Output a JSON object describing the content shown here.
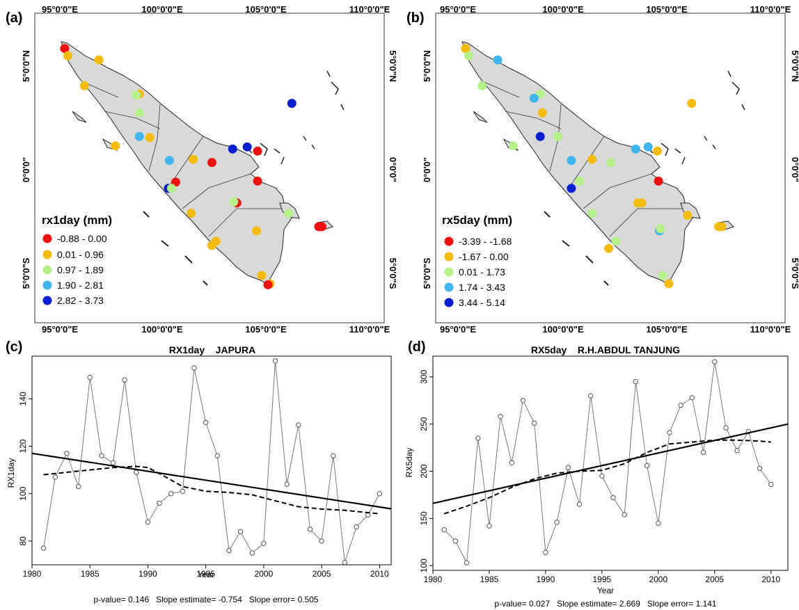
{
  "panels": [
    {
      "label": "(a)",
      "legend": {
        "title": "rx1day (mm)",
        "classes": [
          {
            "label": "-0.88 - 0.00",
            "color": "#ee1111"
          },
          {
            "label": "0.01 - 0.96",
            "color": "#f5bc10"
          },
          {
            "label": "0.97 - 1.89",
            "color": "#b6f08a"
          },
          {
            "label": "1.90 - 2.81",
            "color": "#3fb5ee"
          },
          {
            "label": "2.82 - 3.73",
            "color": "#0a1fd0"
          }
        ]
      },
      "points": [
        {
          "lon": 95.3,
          "lat": 5.85,
          "c": 0
        },
        {
          "lon": 95.45,
          "lat": 5.5,
          "c": 1
        },
        {
          "lon": 96.95,
          "lat": 5.3,
          "c": 1
        },
        {
          "lon": 96.25,
          "lat": 4.05,
          "c": 1
        },
        {
          "lon": 98.9,
          "lat": 3.65,
          "c": 1
        },
        {
          "lon": 98.75,
          "lat": 3.6,
          "c": 2
        },
        {
          "lon": 98.9,
          "lat": 2.75,
          "c": 2
        },
        {
          "lon": 97.75,
          "lat": 1.15,
          "c": 1
        },
        {
          "lon": 98.9,
          "lat": 1.6,
          "c": 3
        },
        {
          "lon": 99.4,
          "lat": 1.55,
          "c": 1
        },
        {
          "lon": 100.35,
          "lat": 0.45,
          "c": 3
        },
        {
          "lon": 101.5,
          "lat": 0.5,
          "c": 1
        },
        {
          "lon": 102.4,
          "lat": 0.35,
          "c": 0
        },
        {
          "lon": 103.4,
          "lat": 1.0,
          "c": 4
        },
        {
          "lon": 104.1,
          "lat": 1.1,
          "c": 4
        },
        {
          "lon": 104.6,
          "lat": 0.9,
          "c": 0
        },
        {
          "lon": 104.6,
          "lat": -0.55,
          "c": 0
        },
        {
          "lon": 106.25,
          "lat": 3.2,
          "c": 4
        },
        {
          "lon": 100.65,
          "lat": -0.6,
          "c": 0
        },
        {
          "lon": 100.3,
          "lat": -0.9,
          "c": 4
        },
        {
          "lon": 100.45,
          "lat": -0.9,
          "c": 2
        },
        {
          "lon": 101.4,
          "lat": -2.1,
          "c": 1
        },
        {
          "lon": 103.6,
          "lat": -1.6,
          "c": 0
        },
        {
          "lon": 103.45,
          "lat": -1.55,
          "c": 2
        },
        {
          "lon": 104.55,
          "lat": -2.95,
          "c": 1
        },
        {
          "lon": 102.4,
          "lat": -3.65,
          "c": 1
        },
        {
          "lon": 102.6,
          "lat": -3.45,
          "c": 1
        },
        {
          "lon": 106.1,
          "lat": -2.1,
          "c": 2
        },
        {
          "lon": 107.55,
          "lat": -2.75,
          "c": 0
        },
        {
          "lon": 107.7,
          "lat": -2.75,
          "c": 0
        },
        {
          "lon": 104.8,
          "lat": -5.1,
          "c": 1
        },
        {
          "lon": 105.2,
          "lat": -5.5,
          "c": 1
        },
        {
          "lon": 105.1,
          "lat": -5.55,
          "c": 0
        }
      ]
    },
    {
      "label": "(b)",
      "legend": {
        "title": "rx5day (mm)",
        "classes": [
          {
            "label": "-3.39 - -1.68",
            "color": "#ee1111"
          },
          {
            "label": "-1.67 - 0.00",
            "color": "#f5bc10"
          },
          {
            "label": "0.01 - 1.73",
            "color": "#b6f08a"
          },
          {
            "label": "1.74 - 3.43",
            "color": "#3fb5ee"
          },
          {
            "label": "3.44 - 5.14",
            "color": "#0a1fd0"
          }
        ]
      },
      "points": [
        {
          "lon": 95.3,
          "lat": 5.85,
          "c": 1
        },
        {
          "lon": 95.45,
          "lat": 5.5,
          "c": 2
        },
        {
          "lon": 96.85,
          "lat": 5.3,
          "c": 3
        },
        {
          "lon": 96.1,
          "lat": 4.05,
          "c": 2
        },
        {
          "lon": 98.9,
          "lat": 3.65,
          "c": 2
        },
        {
          "lon": 98.6,
          "lat": 3.45,
          "c": 3
        },
        {
          "lon": 99.0,
          "lat": 2.75,
          "c": 1
        },
        {
          "lon": 97.6,
          "lat": 1.15,
          "c": 2
        },
        {
          "lon": 98.9,
          "lat": 1.6,
          "c": 4
        },
        {
          "lon": 99.75,
          "lat": 1.6,
          "c": 2
        },
        {
          "lon": 100.4,
          "lat": 0.45,
          "c": 3
        },
        {
          "lon": 101.4,
          "lat": 0.5,
          "c": 1
        },
        {
          "lon": 102.3,
          "lat": 0.35,
          "c": 2
        },
        {
          "lon": 103.5,
          "lat": 1.0,
          "c": 3
        },
        {
          "lon": 104.1,
          "lat": 1.1,
          "c": 3
        },
        {
          "lon": 104.55,
          "lat": 0.9,
          "c": 1
        },
        {
          "lon": 104.6,
          "lat": -0.55,
          "c": 0
        },
        {
          "lon": 106.2,
          "lat": 3.2,
          "c": 1
        },
        {
          "lon": 100.8,
          "lat": -0.55,
          "c": 2
        },
        {
          "lon": 100.4,
          "lat": -0.9,
          "c": 4
        },
        {
          "lon": 101.4,
          "lat": -2.1,
          "c": 2
        },
        {
          "lon": 103.6,
          "lat": -1.6,
          "c": 1
        },
        {
          "lon": 103.8,
          "lat": -1.6,
          "c": 1
        },
        {
          "lon": 104.65,
          "lat": -2.95,
          "c": 3
        },
        {
          "lon": 104.7,
          "lat": -2.85,
          "c": 2
        },
        {
          "lon": 102.2,
          "lat": -3.8,
          "c": 1
        },
        {
          "lon": 102.55,
          "lat": -3.45,
          "c": 2
        },
        {
          "lon": 106.0,
          "lat": -2.2,
          "c": 1
        },
        {
          "lon": 107.5,
          "lat": -2.75,
          "c": 1
        },
        {
          "lon": 107.65,
          "lat": -2.75,
          "c": 1
        },
        {
          "lon": 104.8,
          "lat": -5.1,
          "c": 2
        },
        {
          "lon": 105.1,
          "lat": -5.5,
          "c": 1
        }
      ]
    }
  ],
  "map_axes": {
    "lon_ticks": [
      "95°0'0\"E",
      "100°0'0\"E",
      "105°0'0\"E",
      "110°0'0\"E"
    ],
    "lat_ticks": [
      "5°0'0\"N",
      "0°0'0\"",
      "5°0'0\"S"
    ]
  },
  "chart_data": [
    {
      "type": "line",
      "panel_label": "(c)",
      "title": "RX1day    JAPURA",
      "xlabel": "Year",
      "ylabel": "RX1day",
      "xlim": [
        1980,
        2011
      ],
      "ylim": [
        70,
        158
      ],
      "xticks": [
        1980,
        1985,
        1990,
        1995,
        2000,
        2005,
        2010
      ],
      "yticks": [
        80,
        100,
        120,
        140
      ],
      "series": [
        {
          "kind": "observed",
          "x": [
            1981,
            1982,
            1983,
            1984,
            1985,
            1986,
            1987,
            1988,
            1989,
            1990,
            1991,
            1992,
            1993,
            1994,
            1995,
            1996,
            1997,
            1998,
            1999,
            2000,
            2001,
            2002,
            2003,
            2004,
            2005,
            2006,
            2007,
            2008,
            2009,
            2010
          ],
          "y": [
            77,
            107,
            117,
            103,
            149,
            116,
            113,
            148,
            109,
            88,
            96,
            100,
            101,
            153,
            130,
            116,
            76,
            84,
            75,
            79,
            156,
            104,
            129,
            85,
            80,
            116,
            71,
            86,
            91,
            100
          ]
        },
        {
          "kind": "linear_trend",
          "x": [
            1980,
            2011
          ],
          "y": [
            117,
            93.6
          ]
        },
        {
          "kind": "smoothed",
          "x": [
            1981,
            1983,
            1985,
            1987,
            1989,
            1990,
            1991,
            1993,
            1995,
            1997,
            1999,
            2001,
            2003,
            2005,
            2007,
            2009,
            2010
          ],
          "y": [
            108,
            109,
            110,
            111,
            111.5,
            111,
            108.5,
            103,
            101,
            100.5,
            99.5,
            97,
            94.5,
            93.5,
            93,
            92,
            91.5
          ]
        }
      ],
      "stats": "p-value= 0.146   Slope estimate= -0.754   Slope error= 0.505"
    },
    {
      "type": "line",
      "panel_label": "(d)",
      "title": "RX5day    R.H.ABDUL TANJUNG",
      "xlabel": "Year",
      "ylabel": "RX5day",
      "xlim": [
        1980,
        2011.5
      ],
      "ylim": [
        95,
        322
      ],
      "xticks": [
        1980,
        1985,
        1990,
        1995,
        2000,
        2005,
        2010
      ],
      "yticks": [
        100,
        150,
        200,
        250,
        300
      ],
      "series": [
        {
          "kind": "observed",
          "x": [
            1981,
            1982,
            1983,
            1984,
            1985,
            1986,
            1987,
            1988,
            1989,
            1990,
            1991,
            1992,
            1993,
            1994,
            1995,
            1996,
            1997,
            1998,
            1999,
            2000,
            2001,
            2002,
            2003,
            2004,
            2005,
            2006,
            2007,
            2008,
            2009,
            2010
          ],
          "y": [
            138,
            126,
            103,
            235,
            142,
            258,
            209,
            275,
            251,
            114,
            146,
            204,
            165,
            280,
            195,
            172,
            154,
            295,
            206,
            145,
            241,
            270,
            278,
            220,
            316,
            246,
            222,
            242,
            203,
            186
          ]
        },
        {
          "kind": "linear_trend",
          "x": [
            1980,
            2011.5
          ],
          "y": [
            166,
            250
          ]
        },
        {
          "kind": "smoothed",
          "x": [
            1981,
            1983,
            1985,
            1987,
            1989,
            1991,
            1992,
            1993,
            1995,
            1997,
            1999,
            2001,
            2003,
            2005,
            2007,
            2009,
            2010
          ],
          "y": [
            155,
            163,
            172,
            183,
            192,
            198,
            199,
            200,
            201,
            208,
            220,
            229,
            231,
            233,
            233,
            232,
            231
          ]
        }
      ],
      "stats": "p-value= 0.027   Slope estimate= 2.669   Slope error= 1.141"
    }
  ]
}
